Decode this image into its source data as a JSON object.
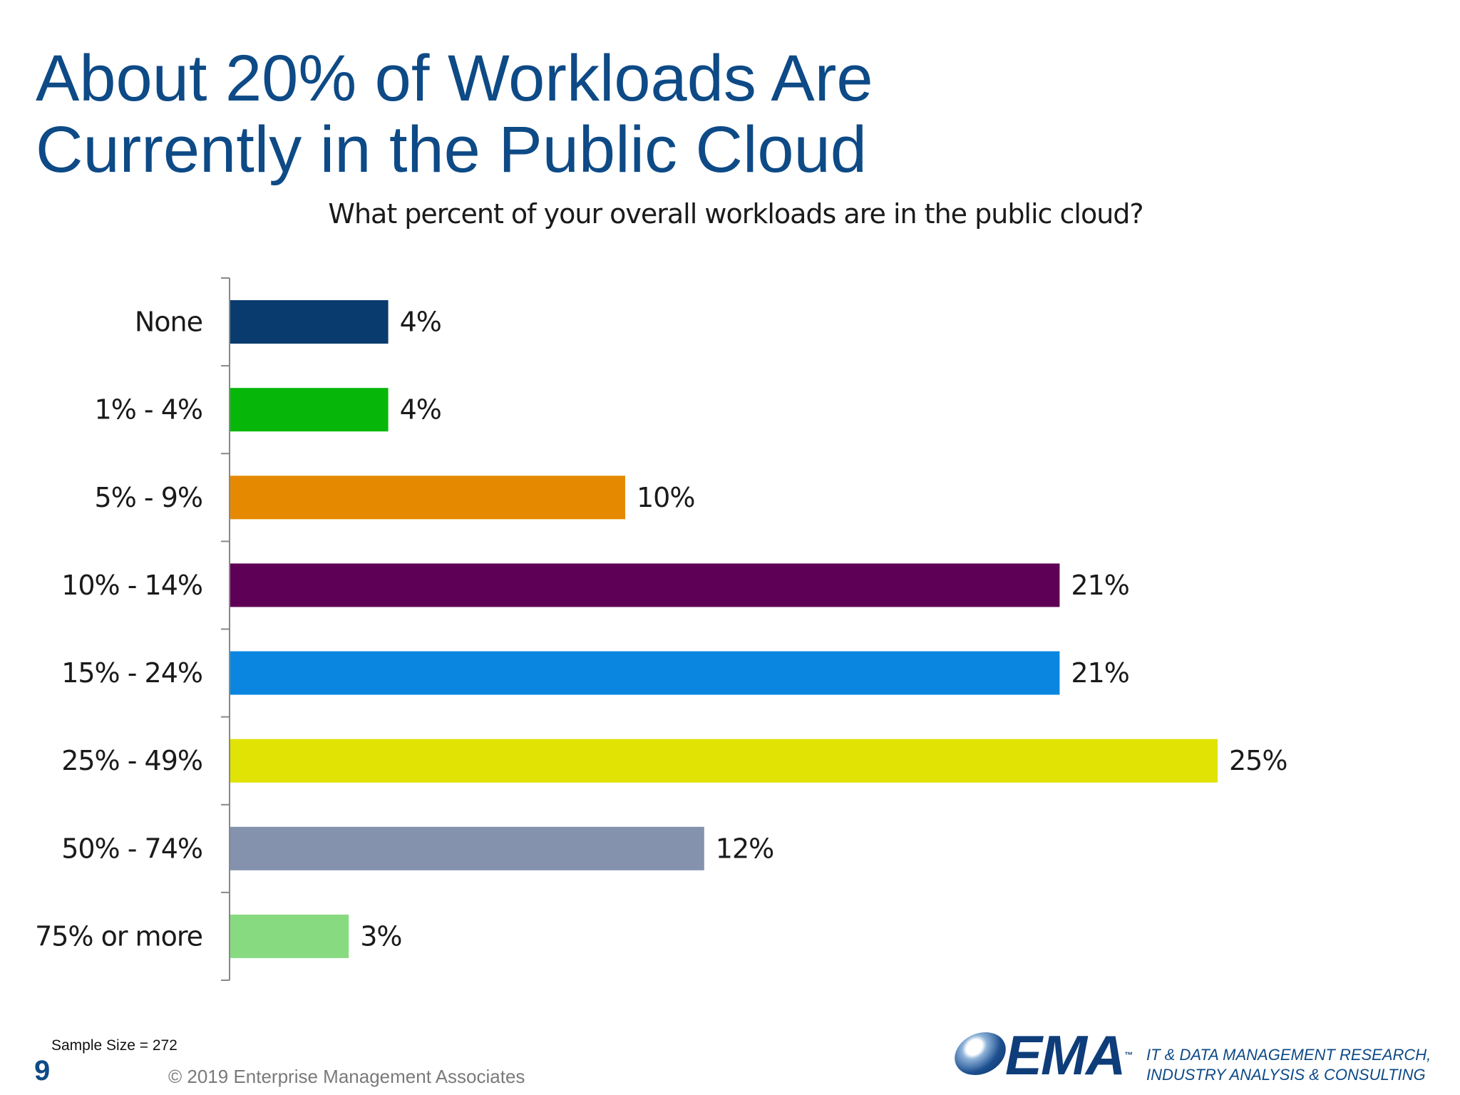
{
  "slide": {
    "title_line1": "About 20% of Workloads Are",
    "title_line2": "Currently in the Public Cloud"
  },
  "chart_data": {
    "type": "bar",
    "orientation": "horizontal",
    "title": "What percent of your overall workloads are in the public cloud?",
    "categories": [
      "None",
      "1% - 4%",
      "5% - 9%",
      "10% - 14%",
      "15% - 24%",
      "25% - 49%",
      "50% - 74%",
      "75% or more"
    ],
    "values": [
      4,
      4,
      10,
      21,
      21,
      25,
      12,
      3
    ],
    "data_labels": [
      "4%",
      "4%",
      "10%",
      "21%",
      "21%",
      "25%",
      "12%",
      "3%"
    ],
    "colors": [
      "#0a3b6e",
      "#06b70a",
      "#e58a00",
      "#5e0055",
      "#0a86e0",
      "#e0e303",
      "#8492ae",
      "#88da80"
    ],
    "xlim": [
      0,
      25
    ],
    "grid": false,
    "legend": "none"
  },
  "footer": {
    "sample_size": "Sample Size = 272",
    "page_number": "9",
    "copyright": "© 2019 Enterprise Management Associates",
    "logo_text": "EMA",
    "logo_tm": "™",
    "tagline_line1": "IT & DATA MANAGEMENT RESEARCH,",
    "tagline_line2": "INDUSTRY ANALYSIS & CONSULTING"
  }
}
